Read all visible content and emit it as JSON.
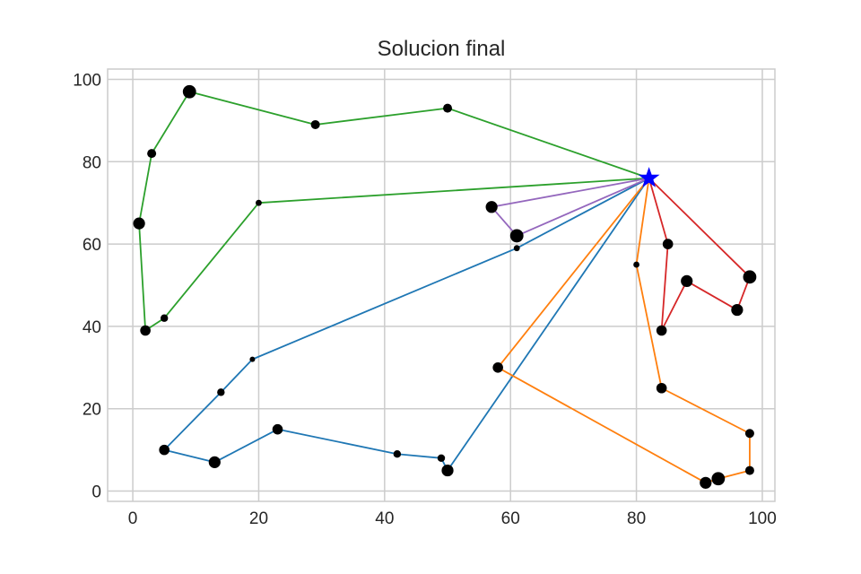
{
  "chart_data": {
    "type": "line",
    "title": "Solucion final",
    "xlabel": "",
    "ylabel": "",
    "xlim": [
      -4,
      102
    ],
    "ylim": [
      -2.5,
      102.5
    ],
    "xticks": [
      0,
      20,
      40,
      60,
      80,
      100
    ],
    "yticks": [
      0,
      20,
      40,
      60,
      80,
      100
    ],
    "grid": true,
    "depot": {
      "x": 82,
      "y": 76,
      "marker": "star",
      "color": "#0000ff"
    },
    "routes": [
      {
        "color": "#1f77b4",
        "points": [
          [
            82,
            76
          ],
          [
            61,
            59
          ],
          [
            19,
            32
          ],
          [
            14,
            24
          ],
          [
            5,
            10
          ],
          [
            13,
            7
          ],
          [
            23,
            15
          ],
          [
            42,
            9
          ],
          [
            49,
            8
          ],
          [
            50,
            5
          ],
          [
            82,
            76
          ]
        ]
      },
      {
        "color": "#ff7f0e",
        "points": [
          [
            82,
            76
          ],
          [
            80,
            55
          ],
          [
            84,
            25
          ],
          [
            98,
            14
          ],
          [
            98,
            5
          ],
          [
            93,
            3
          ],
          [
            91,
            2
          ],
          [
            58,
            30
          ],
          [
            82,
            76
          ]
        ]
      },
      {
        "color": "#2ca02c",
        "points": [
          [
            82,
            76
          ],
          [
            50,
            93
          ],
          [
            29,
            89
          ],
          [
            9,
            97
          ],
          [
            3,
            82
          ],
          [
            1,
            65
          ],
          [
            2,
            39
          ],
          [
            5,
            42
          ],
          [
            20,
            70
          ],
          [
            82,
            76
          ]
        ]
      },
      {
        "color": "#d62728",
        "points": [
          [
            82,
            76
          ],
          [
            85,
            60
          ],
          [
            84,
            39
          ],
          [
            88,
            51
          ],
          [
            96,
            44
          ],
          [
            98,
            52
          ],
          [
            82,
            76
          ]
        ]
      },
      {
        "color": "#9467bd",
        "points": [
          [
            82,
            76
          ],
          [
            57,
            69
          ],
          [
            61,
            62
          ],
          [
            82,
            76
          ]
        ]
      }
    ],
    "customers": [
      {
        "x": 61,
        "y": 59,
        "demand": 1
      },
      {
        "x": 19,
        "y": 32,
        "demand": 0.5
      },
      {
        "x": 14,
        "y": 24,
        "demand": 2
      },
      {
        "x": 5,
        "y": 10,
        "demand": 4
      },
      {
        "x": 13,
        "y": 7,
        "demand": 5
      },
      {
        "x": 23,
        "y": 15,
        "demand": 4
      },
      {
        "x": 42,
        "y": 9,
        "demand": 2
      },
      {
        "x": 49,
        "y": 8,
        "demand": 2
      },
      {
        "x": 50,
        "y": 5,
        "demand": 5
      },
      {
        "x": 80,
        "y": 55,
        "demand": 1
      },
      {
        "x": 84,
        "y": 25,
        "demand": 4
      },
      {
        "x": 98,
        "y": 14,
        "demand": 3
      },
      {
        "x": 98,
        "y": 5,
        "demand": 3
      },
      {
        "x": 93,
        "y": 3,
        "demand": 6
      },
      {
        "x": 91,
        "y": 2,
        "demand": 5
      },
      {
        "x": 58,
        "y": 30,
        "demand": 4
      },
      {
        "x": 50,
        "y": 93,
        "demand": 3
      },
      {
        "x": 29,
        "y": 89,
        "demand": 3
      },
      {
        "x": 9,
        "y": 97,
        "demand": 6
      },
      {
        "x": 3,
        "y": 82,
        "demand": 3
      },
      {
        "x": 1,
        "y": 65,
        "demand": 5
      },
      {
        "x": 2,
        "y": 39,
        "demand": 4
      },
      {
        "x": 5,
        "y": 42,
        "demand": 2
      },
      {
        "x": 20,
        "y": 70,
        "demand": 1
      },
      {
        "x": 85,
        "y": 60,
        "demand": 4
      },
      {
        "x": 84,
        "y": 39,
        "demand": 4
      },
      {
        "x": 88,
        "y": 51,
        "demand": 5
      },
      {
        "x": 96,
        "y": 44,
        "demand": 5
      },
      {
        "x": 98,
        "y": 52,
        "demand": 6
      },
      {
        "x": 57,
        "y": 69,
        "demand": 5
      },
      {
        "x": 61,
        "y": 62,
        "demand": 6
      }
    ]
  }
}
